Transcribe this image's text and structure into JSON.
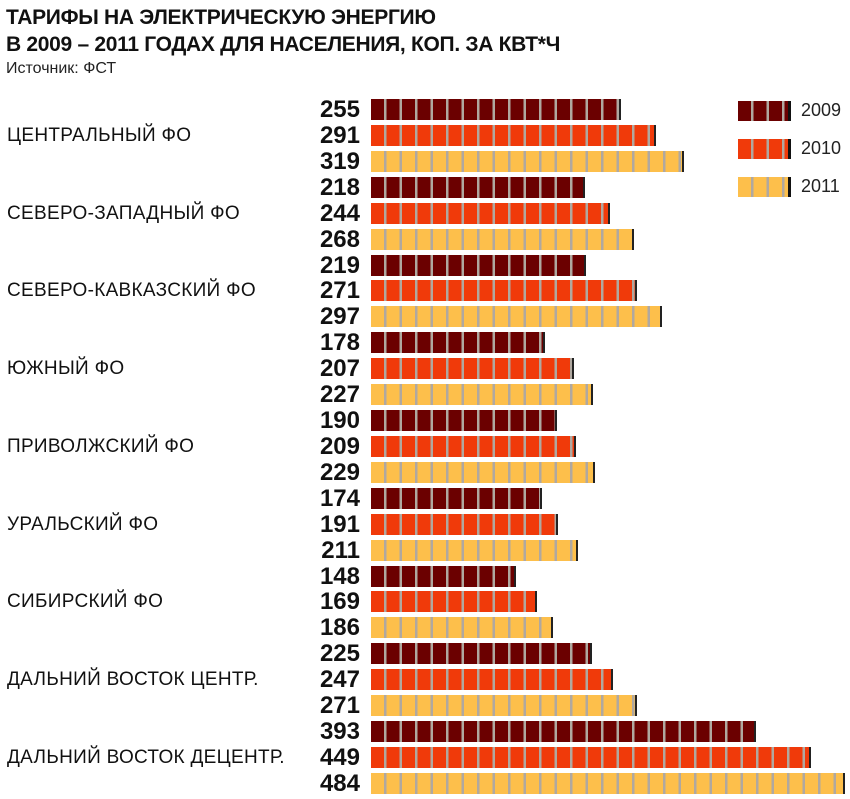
{
  "chart_data": {
    "type": "bar",
    "orientation": "horizontal",
    "title": "ТАРИФЫ НА ЭЛЕКТРИЧЕСКУЮ ЭНЕРГИЮ В 2009 – 2011 ГОДАХ ДЛЯ НАСЕЛЕНИЯ, КОП. ЗА КВТ*Ч",
    "title_line1": "ТАРИФЫ НА ЭЛЕКТРИЧЕСКУЮ ЭНЕРГИЮ",
    "title_line2": "В 2009 – 2011 ГОДАХ ДЛЯ НАСЕЛЕНИЯ, КОП. ЗА КВТ*Ч",
    "source": "Источник: ФСТ",
    "categories": [
      "ЦЕНТРАЛЬНЫЙ ФО",
      "СЕВЕРО-ЗАПАДНЫЙ ФО",
      "СЕВЕРО-КАВКАЗСКИЙ ФО",
      "ЮЖНЫЙ ФО",
      "ПРИВОЛЖСКИЙ ФО",
      "УРАЛЬСКИЙ ФО",
      "СИБИРСКИЙ ФО",
      "ДАЛЬНИЙ ВОСТОК ЦЕНТР.",
      "ДАЛЬНИЙ ВОСТОК ДЕЦЕНТР."
    ],
    "series": [
      {
        "name": "2009",
        "color": "#6b0000",
        "values": [
          255,
          218,
          219,
          178,
          190,
          174,
          148,
          225,
          393
        ]
      },
      {
        "name": "2010",
        "color": "#f03a0a",
        "values": [
          291,
          244,
          271,
          207,
          209,
          191,
          169,
          247,
          449
        ]
      },
      {
        "name": "2011",
        "color": "#fdbf4b",
        "values": [
          319,
          268,
          297,
          227,
          229,
          211,
          186,
          271,
          484
        ]
      }
    ],
    "legend": "top-right",
    "xlim": [
      0,
      490
    ]
  }
}
